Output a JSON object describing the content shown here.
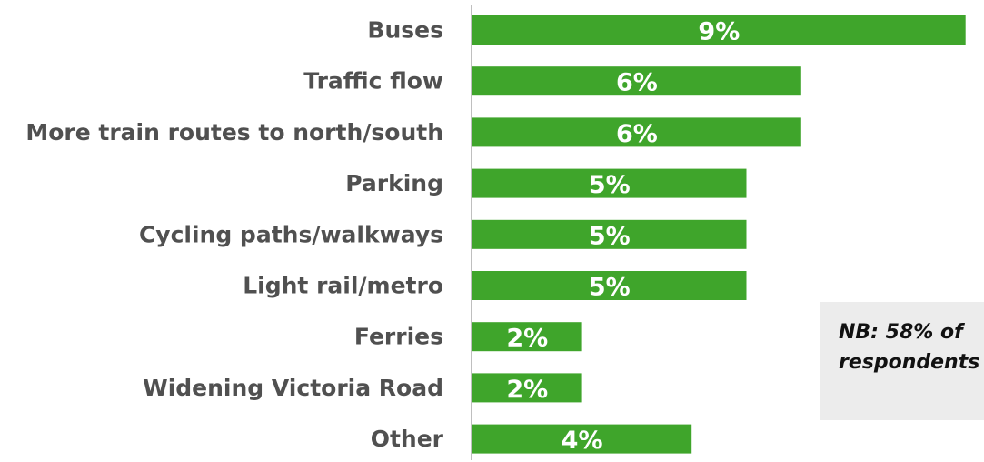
{
  "chart_data": {
    "type": "bar",
    "orientation": "horizontal",
    "categories": [
      "Buses",
      "Traffic flow",
      "More train routes to north/south",
      "Parking",
      "Cycling paths/walkways",
      "Light rail/metro",
      "Ferries",
      "Widening Victoria Road",
      "Other"
    ],
    "values": [
      9,
      6,
      6,
      5,
      5,
      5,
      2,
      2,
      4
    ],
    "value_labels": [
      "9%",
      "6%",
      "6%",
      "5%",
      "5%",
      "5%",
      "2%",
      "2%",
      "4%"
    ],
    "title": "",
    "xlabel": "",
    "ylabel": "",
    "bar_color": "#3fa52b",
    "grid": false,
    "legend": "none"
  },
  "note": {
    "text": "NB: 58% of\nrespondents"
  },
  "colors": {
    "bar": "#3fa52b",
    "axis": "#bfbfbf",
    "label": "#505050",
    "note_bg": "#ececec"
  }
}
